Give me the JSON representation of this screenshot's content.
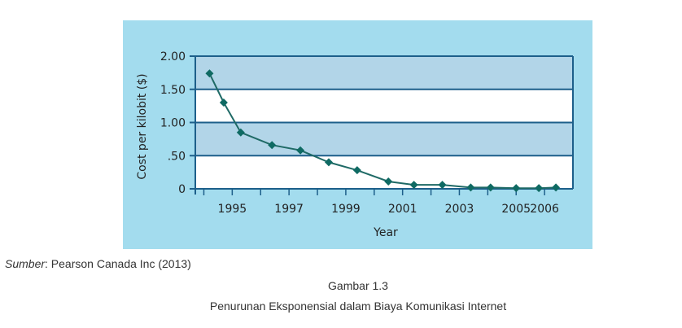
{
  "colors": {
    "panel_bg": "#a3dcee",
    "band_fill": "#b2d5e8",
    "plot_fill": "#ffffff",
    "axis": "#1d5f8a",
    "line": "#1f6a66",
    "marker": "#0f6a63",
    "text": "#222222"
  },
  "chart_data": {
    "type": "line",
    "ylabel": "Cost per kilobit ($)",
    "xlabel": "Year",
    "ylim": [
      0,
      2.0
    ],
    "xlim": [
      1993.7,
      2007
    ],
    "grid": "horizontal alternating bands",
    "y_ticks": [
      {
        "value": 0,
        "label": "0"
      },
      {
        "value": 0.5,
        "label": ".50"
      },
      {
        "value": 1.0,
        "label": "1.00"
      },
      {
        "value": 1.5,
        "label": "1.50"
      },
      {
        "value": 2.0,
        "label": "2.00"
      }
    ],
    "x_ticks": [
      {
        "value": 1995,
        "label": "1995"
      },
      {
        "value": 1997,
        "label": "1997"
      },
      {
        "value": 1999,
        "label": "1999"
      },
      {
        "value": 2001,
        "label": "2001"
      },
      {
        "value": 2003,
        "label": "2003"
      },
      {
        "value": 2005,
        "label": "2005"
      },
      {
        "value": 2006,
        "label": "2006"
      }
    ],
    "x_minor_ticks": [
      1994,
      1996,
      1998,
      2000,
      2002,
      2004
    ],
    "series": [
      {
        "x": [
          1994.2,
          1994.7,
          1995.3,
          1996.4,
          1997.4,
          1998.4,
          1999.4,
          2000.5,
          2001.4,
          2002.4,
          2003.4,
          2004.1,
          2005.0,
          2005.8,
          2006.4
        ],
        "y": [
          1.74,
          1.3,
          0.85,
          0.66,
          0.58,
          0.4,
          0.28,
          0.11,
          0.06,
          0.06,
          0.02,
          0.02,
          0.01,
          0.01,
          0.02
        ]
      }
    ]
  },
  "source": {
    "label": "Sumber",
    "text": ": Pearson Canada Inc (2013)"
  },
  "caption": {
    "figure": "Gambar 1.3",
    "title": "Penurunan Eksponensial dalam Biaya Komunikasi Internet"
  }
}
